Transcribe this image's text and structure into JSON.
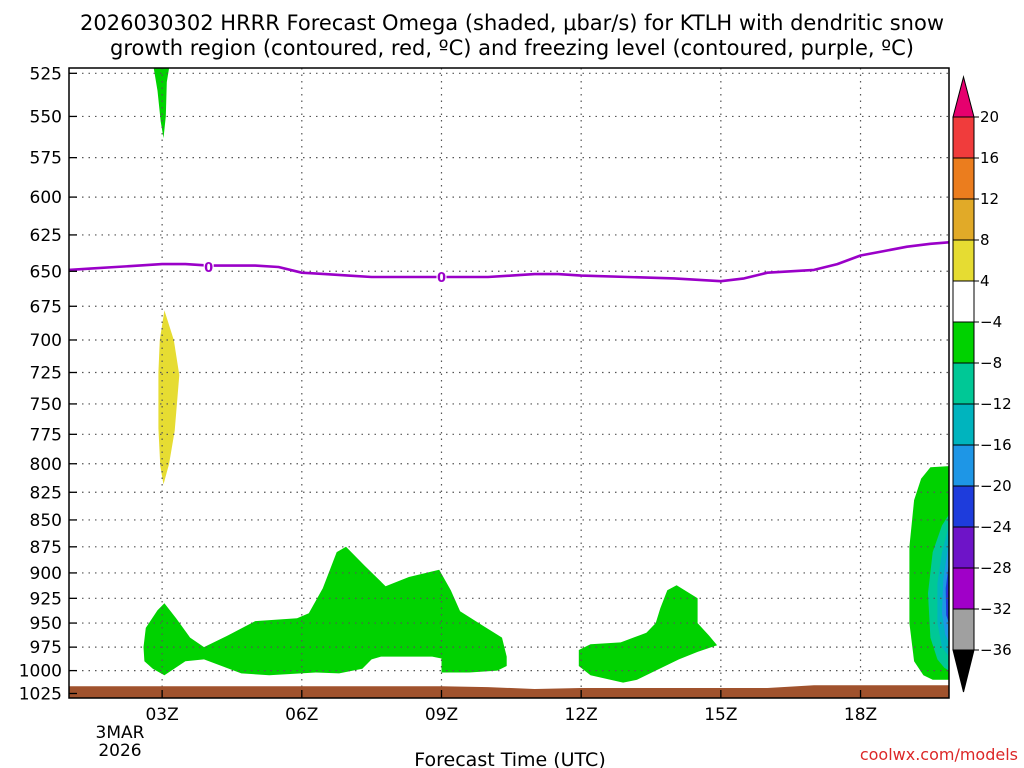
{
  "chart_data": {
    "type": "time-height cross section (contour)",
    "title_lines": [
      "2026030302 HRRR Forecast Omega (shaded, μbar/s) for KTLH with dendritic snow",
      "growth region (contoured, red, ºC) and freezing level (contoured, purple, ºC)"
    ],
    "xlabel": "Forecast Time (UTC)",
    "ylabel": "",
    "x_unit": "hours after 2026-03-03 00Z",
    "xlim": [
      1.0,
      19.9
    ],
    "ylim_hpa": [
      1030,
      522
    ],
    "x_ticks": [
      {
        "x": 3,
        "label": "03Z"
      },
      {
        "x": 6,
        "label": "06Z"
      },
      {
        "x": 9,
        "label": "09Z"
      },
      {
        "x": 12,
        "label": "12Z"
      },
      {
        "x": 15,
        "label": "15Z"
      },
      {
        "x": 18,
        "label": "18Z"
      }
    ],
    "date_label": [
      "3MAR",
      "2026"
    ],
    "y_ticks": [
      525,
      550,
      575,
      600,
      625,
      650,
      675,
      700,
      725,
      750,
      775,
      800,
      825,
      850,
      875,
      900,
      925,
      950,
      975,
      1000,
      1025
    ],
    "grid": true,
    "colorbar": {
      "levels": [
        "20",
        "16",
        "12",
        "8",
        "4",
        "−4",
        "−8",
        "−12",
        "−16",
        "−20",
        "−24",
        "−28",
        "−32",
        "−36"
      ],
      "colors": [
        "#f03c3c",
        "#eb7d1e",
        "#e1aa28",
        "#e6dc32",
        "#ffffff",
        "#00d200",
        "#00c896",
        "#00b4be",
        "#1e96e6",
        "#1e3cdc",
        "#6e14c8",
        "#a000c8",
        "#a0a0a0"
      ],
      "top_color": "#e6006e",
      "bottom_color": "#000000"
    },
    "shaded_regions": [
      {
        "name": "upper-green-sliver",
        "color": "#00d200",
        "value_range": "-8 to -4",
        "points": [
          [
            2.82,
            522
          ],
          [
            3.15,
            522
          ],
          [
            3.1,
            530
          ],
          [
            3.08,
            550
          ],
          [
            3.03,
            563
          ],
          [
            2.97,
            553
          ],
          [
            2.9,
            535
          ]
        ]
      },
      {
        "name": "yellow-column",
        "color": "#e6dc32",
        "value_range": "4 to 8",
        "points": [
          [
            3.05,
            678
          ],
          [
            3.25,
            700
          ],
          [
            3.37,
            727
          ],
          [
            3.27,
            772
          ],
          [
            3.15,
            800
          ],
          [
            3.03,
            818
          ],
          [
            2.96,
            802
          ],
          [
            2.92,
            770
          ],
          [
            2.92,
            725
          ],
          [
            2.95,
            700
          ]
        ]
      },
      {
        "name": "low-green-main",
        "color": "#00d200",
        "value_range": "-8 to -4",
        "points": [
          [
            2.6,
            975
          ],
          [
            2.65,
            955
          ],
          [
            2.9,
            937
          ],
          [
            3.05,
            930
          ],
          [
            3.3,
            945
          ],
          [
            3.6,
            965
          ],
          [
            3.9,
            975
          ],
          [
            4.4,
            963
          ],
          [
            5.0,
            948
          ],
          [
            5.9,
            945
          ],
          [
            6.15,
            940
          ],
          [
            6.45,
            915
          ],
          [
            6.75,
            880
          ],
          [
            6.95,
            875
          ],
          [
            7.35,
            893
          ],
          [
            7.8,
            913
          ],
          [
            8.3,
            904
          ],
          [
            8.95,
            897
          ],
          [
            9.2,
            917
          ],
          [
            9.4,
            938
          ],
          [
            9.9,
            953
          ],
          [
            10.3,
            965
          ],
          [
            10.4,
            985
          ],
          [
            10.4,
            995
          ],
          [
            10.2,
            1000
          ],
          [
            9.6,
            1002
          ],
          [
            9.0,
            1002
          ],
          [
            9.0,
            987
          ],
          [
            8.8,
            985
          ],
          [
            7.7,
            985
          ],
          [
            7.5,
            988
          ],
          [
            7.3,
            998
          ],
          [
            6.8,
            1003
          ],
          [
            6.3,
            1002
          ],
          [
            5.3,
            1005
          ],
          [
            4.7,
            1003
          ],
          [
            3.9,
            988
          ],
          [
            3.5,
            990
          ],
          [
            3.05,
            1005
          ],
          [
            2.8,
            998
          ],
          [
            2.62,
            990
          ]
        ]
      },
      {
        "name": "low-green-midday",
        "color": "#00d200",
        "value_range": "-8 to -4",
        "points": [
          [
            11.95,
            978
          ],
          [
            12.2,
            972
          ],
          [
            12.85,
            970
          ],
          [
            13.4,
            960
          ],
          [
            13.6,
            950
          ],
          [
            13.7,
            935
          ],
          [
            13.85,
            917
          ],
          [
            14.05,
            912
          ],
          [
            14.5,
            925
          ],
          [
            14.5,
            950
          ],
          [
            14.75,
            963
          ],
          [
            14.92,
            973
          ],
          [
            14.5,
            980
          ],
          [
            14.1,
            988
          ],
          [
            13.6,
            1000
          ],
          [
            13.2,
            1010
          ],
          [
            12.9,
            1013
          ],
          [
            12.2,
            1005
          ],
          [
            11.95,
            995
          ]
        ]
      },
      {
        "name": "right-edge-green",
        "color": "#00d200",
        "value_range": "-8 to -4",
        "points": [
          [
            19.9,
            802
          ],
          [
            19.5,
            803
          ],
          [
            19.3,
            813
          ],
          [
            19.15,
            832
          ],
          [
            19.05,
            875
          ],
          [
            19.05,
            950
          ],
          [
            19.15,
            990
          ],
          [
            19.35,
            1005
          ],
          [
            19.55,
            1010
          ],
          [
            19.9,
            1010
          ]
        ]
      },
      {
        "name": "right-edge-teal",
        "color": "#00c896",
        "value_range": "-12 to -8",
        "points": [
          [
            19.9,
            845
          ],
          [
            19.75,
            855
          ],
          [
            19.55,
            880
          ],
          [
            19.45,
            920
          ],
          [
            19.5,
            965
          ],
          [
            19.65,
            988
          ],
          [
            19.8,
            997
          ],
          [
            19.9,
            1000
          ]
        ]
      },
      {
        "name": "right-edge-cyan",
        "color": "#00b4be",
        "value_range": "-16 to -12",
        "points": [
          [
            19.9,
            855
          ],
          [
            19.75,
            880
          ],
          [
            19.65,
            910
          ],
          [
            19.65,
            950
          ],
          [
            19.75,
            975
          ],
          [
            19.9,
            985
          ]
        ]
      },
      {
        "name": "right-edge-blue",
        "color": "#1e96e6",
        "value_range": "-20 to -16",
        "points": [
          [
            19.9,
            870
          ],
          [
            19.78,
            905
          ],
          [
            19.75,
            940
          ],
          [
            19.82,
            962
          ],
          [
            19.9,
            970
          ]
        ]
      },
      {
        "name": "right-edge-darkblue",
        "color": "#1e3cdc",
        "value_range": "-24 to -20",
        "points": [
          [
            19.9,
            890
          ],
          [
            19.83,
            915
          ],
          [
            19.84,
            942
          ],
          [
            19.9,
            950
          ]
        ]
      },
      {
        "name": "right-edge-purple",
        "color": "#6e14c8",
        "value_range": "-28 to -24",
        "points": [
          [
            19.9,
            905
          ],
          [
            19.87,
            920
          ],
          [
            19.9,
            935
          ]
        ]
      }
    ],
    "terrain": {
      "color": "#a0522d",
      "points": [
        [
          1.0,
          1017
        ],
        [
          9.0,
          1017
        ],
        [
          10.0,
          1018
        ],
        [
          11.0,
          1020
        ],
        [
          12.0,
          1019
        ],
        [
          15.0,
          1019
        ],
        [
          16.0,
          1019
        ],
        [
          17.0,
          1016
        ],
        [
          19.9,
          1016
        ]
      ]
    },
    "freezing_level": {
      "label": "0",
      "color": "#9a00c8",
      "label_points": [
        [
          4.0,
          647
        ],
        [
          9.0,
          654
        ]
      ],
      "points": [
        [
          1.0,
          649
        ],
        [
          1.5,
          648
        ],
        [
          2.0,
          647
        ],
        [
          2.5,
          646
        ],
        [
          3.0,
          645
        ],
        [
          3.5,
          645
        ],
        [
          4.0,
          646
        ],
        [
          4.5,
          646
        ],
        [
          5.0,
          646
        ],
        [
          5.5,
          647
        ],
        [
          6.0,
          651
        ],
        [
          6.5,
          652
        ],
        [
          7.0,
          653
        ],
        [
          7.5,
          654
        ],
        [
          8.0,
          654
        ],
        [
          8.5,
          654
        ],
        [
          9.0,
          654
        ],
        [
          9.5,
          654
        ],
        [
          10.0,
          654
        ],
        [
          10.5,
          653
        ],
        [
          11.0,
          652
        ],
        [
          11.5,
          652
        ],
        [
          12.0,
          653
        ],
        [
          13.0,
          654
        ],
        [
          14.0,
          655
        ],
        [
          14.5,
          656
        ],
        [
          15.0,
          657
        ],
        [
          15.5,
          655
        ],
        [
          16.0,
          651
        ],
        [
          16.5,
          650
        ],
        [
          17.0,
          649
        ],
        [
          17.5,
          645
        ],
        [
          18.0,
          639
        ],
        [
          18.5,
          636
        ],
        [
          19.0,
          633
        ],
        [
          19.5,
          631
        ],
        [
          19.9,
          630
        ]
      ]
    }
  },
  "credit": {
    "text": "coolwx.com/models",
    "color": "#dc2828"
  }
}
